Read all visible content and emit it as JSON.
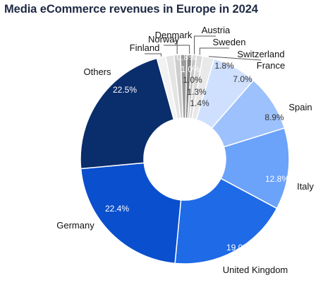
{
  "chart_data": {
    "type": "pie",
    "donut": true,
    "title": "Media eCommerce revenues in Europe in 2024",
    "slices": [
      {
        "label": "Norway",
        "value": 0.8,
        "value_label": "0.8%",
        "color": "#7f7f7f"
      },
      {
        "label": "Austria",
        "value": 0.7,
        "value_label": "",
        "color": "#c4c4c4"
      },
      {
        "label": "Sweden",
        "value": 1.0,
        "value_label": "1.0%",
        "color": "#dadada"
      },
      {
        "label": "Switzerland",
        "value": 1.8,
        "value_label": "1.8%",
        "color": "#e9e9e9"
      },
      {
        "label": "France",
        "value": 7.0,
        "value_label": "7.0%",
        "color": "#cfe0ff"
      },
      {
        "label": "Spain",
        "value": 8.9,
        "value_label": "8.9%",
        "color": "#9dc1fc"
      },
      {
        "label": "Italy",
        "value": 12.8,
        "value_label": "12.8%",
        "color": "#6ba2fa"
      },
      {
        "label": "United Kingdom",
        "value": 19.0,
        "value_label": "19.0%",
        "color": "#1f6ae6"
      },
      {
        "label": "Germany",
        "value": 22.4,
        "value_label": "22.4%",
        "color": "#0a4fcd"
      },
      {
        "label": "Others",
        "value": 22.5,
        "value_label": "22.5%",
        "color": "#0a2d6b"
      },
      {
        "label": "Finland",
        "value": 1.4,
        "value_label": "1.4%",
        "color": "#f2f2f2"
      },
      {
        "label": "",
        "value": 1.3,
        "value_label": "1.3%",
        "color": "#e4e4e4"
      },
      {
        "label": "Denmark",
        "value": 1.0,
        "value_label": "1.0%",
        "color": "#cdcdcd"
      },
      {
        "label": "",
        "value": 1.0,
        "value_label": "1.0%",
        "color": "#9a9a9a"
      }
    ]
  }
}
